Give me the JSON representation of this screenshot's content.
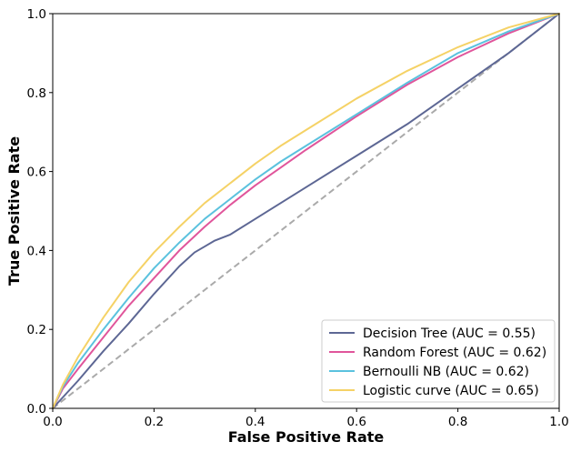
{
  "chart_data": {
    "type": "line",
    "title": "",
    "xlabel": "False Positive Rate",
    "ylabel": "True Positive Rate",
    "xlim": [
      0,
      1
    ],
    "ylim": [
      0,
      1
    ],
    "xticks": [
      "0.0",
      "0.2",
      "0.4",
      "0.6",
      "0.8",
      "1.0"
    ],
    "yticks": [
      "0.0",
      "0.2",
      "0.4",
      "0.6",
      "0.8",
      "1.0"
    ],
    "grid": false,
    "legend_position": "bottom-right",
    "diagonal": {
      "x": [
        0,
        1
      ],
      "y": [
        0,
        1
      ],
      "color": "#aaaaaa",
      "style": "dashed"
    },
    "series": [
      {
        "name": "Decision Tree (AUC = 0.55)",
        "color": "#5d6794",
        "x": [
          0,
          0.05,
          0.1,
          0.15,
          0.2,
          0.25,
          0.28,
          0.3,
          0.32,
          0.35,
          0.4,
          0.5,
          0.6,
          0.7,
          0.8,
          0.9,
          1.0
        ],
        "y": [
          0,
          0.07,
          0.145,
          0.215,
          0.29,
          0.36,
          0.395,
          0.41,
          0.425,
          0.44,
          0.48,
          0.56,
          0.64,
          0.72,
          0.81,
          0.9,
          1.0
        ]
      },
      {
        "name": "Random Forest (AUC = 0.62)",
        "color": "#e0559b",
        "x": [
          0,
          0.02,
          0.05,
          0.1,
          0.15,
          0.2,
          0.25,
          0.3,
          0.35,
          0.4,
          0.45,
          0.5,
          0.6,
          0.7,
          0.8,
          0.9,
          1.0
        ],
        "y": [
          0,
          0.05,
          0.1,
          0.18,
          0.26,
          0.33,
          0.4,
          0.46,
          0.515,
          0.565,
          0.61,
          0.655,
          0.74,
          0.82,
          0.89,
          0.95,
          1.0
        ]
      },
      {
        "name": "Bernoulli NB (AUC = 0.62)",
        "color": "#5bc2de",
        "x": [
          0,
          0.02,
          0.05,
          0.1,
          0.15,
          0.2,
          0.25,
          0.3,
          0.35,
          0.4,
          0.45,
          0.5,
          0.6,
          0.7,
          0.8,
          0.9,
          1.0
        ],
        "y": [
          0,
          0.055,
          0.115,
          0.2,
          0.28,
          0.355,
          0.42,
          0.48,
          0.53,
          0.58,
          0.625,
          0.665,
          0.745,
          0.825,
          0.9,
          0.955,
          1.0
        ]
      },
      {
        "name": "Logistic curve (AUC = 0.65)",
        "color": "#f5d266",
        "x": [
          0,
          0.02,
          0.05,
          0.1,
          0.15,
          0.2,
          0.25,
          0.3,
          0.35,
          0.4,
          0.45,
          0.5,
          0.6,
          0.7,
          0.8,
          0.9,
          1.0
        ],
        "y": [
          0,
          0.06,
          0.13,
          0.23,
          0.32,
          0.395,
          0.46,
          0.52,
          0.57,
          0.62,
          0.665,
          0.705,
          0.785,
          0.855,
          0.915,
          0.965,
          1.0
        ]
      }
    ]
  }
}
